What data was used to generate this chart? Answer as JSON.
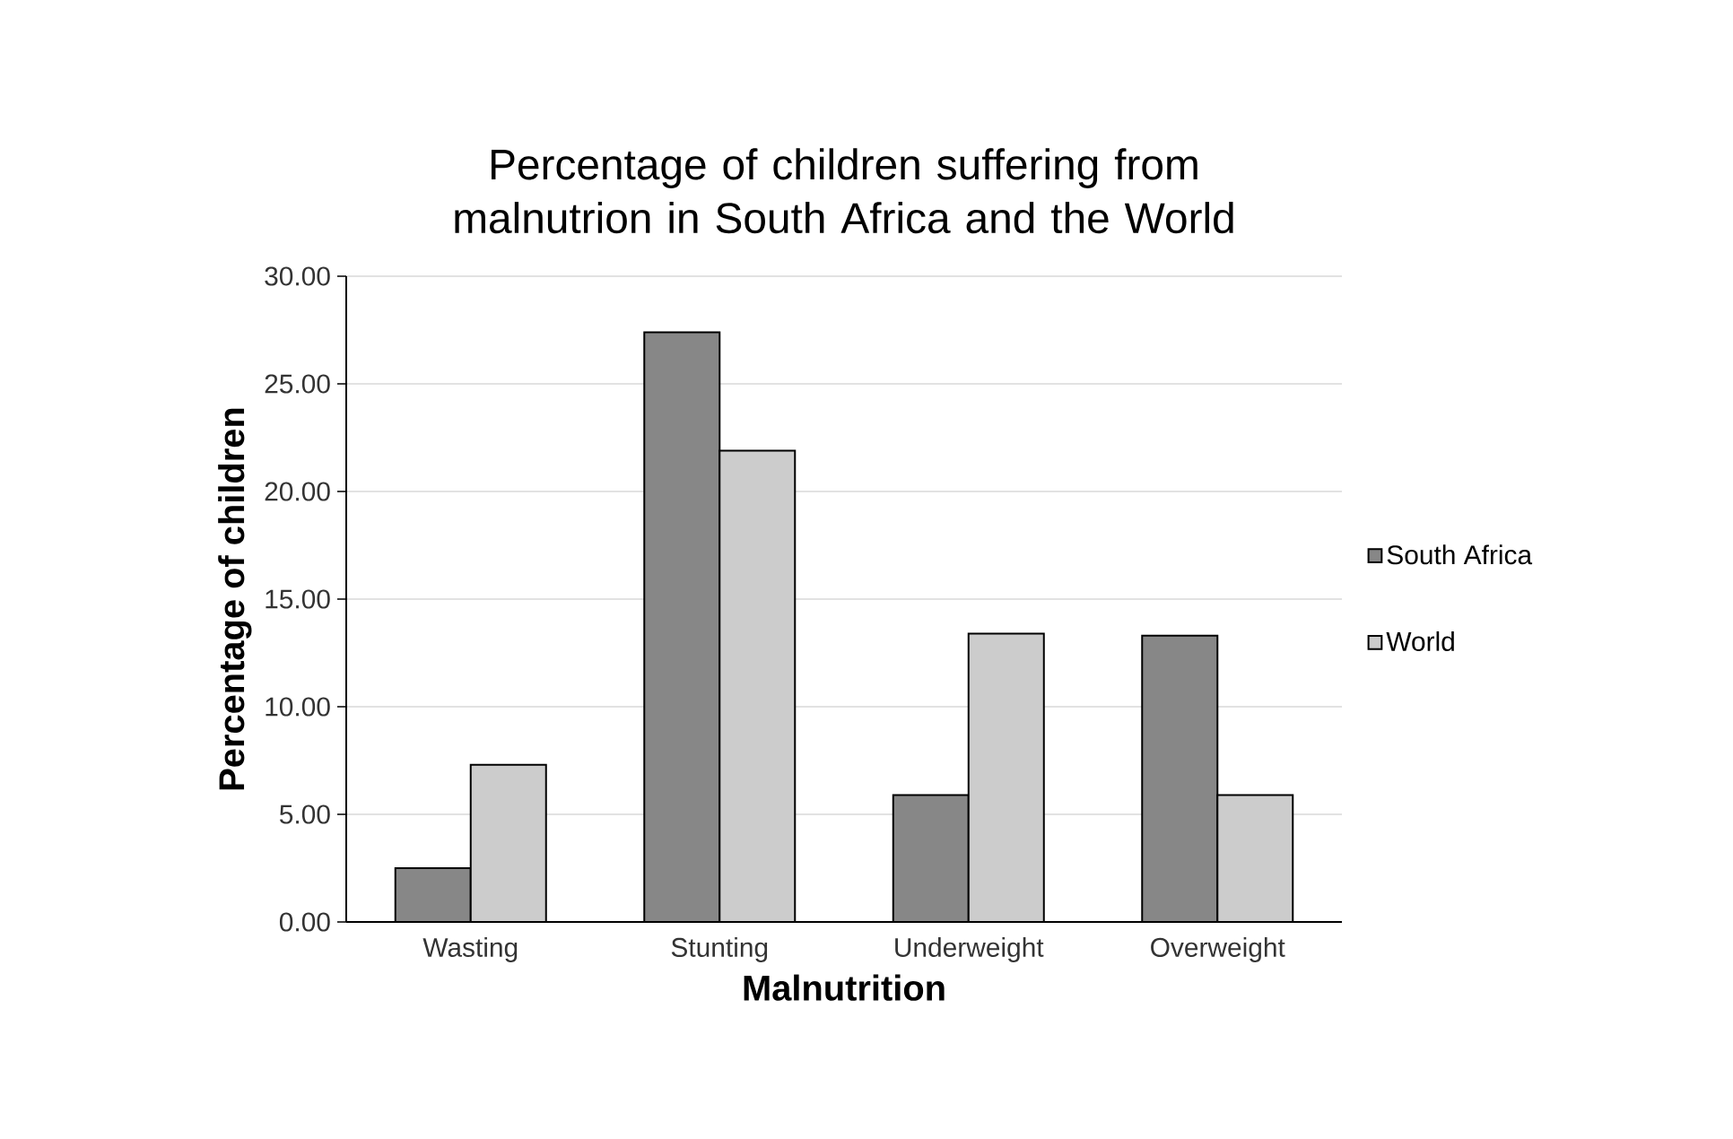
{
  "chart_data": {
    "type": "bar",
    "title": "Percentage of children suffering from malnutrion in South Africa and the World",
    "xlabel": "Malnutrition",
    "ylabel": "Percentage of children",
    "categories": [
      "Wasting",
      "Stunting",
      "Underweight",
      "Overweight"
    ],
    "series": [
      {
        "name": "South Africa",
        "color": "#878787",
        "values": [
          2.5,
          27.4,
          5.9,
          13.3
        ]
      },
      {
        "name": "World",
        "color": "#cccccc",
        "values": [
          7.3,
          21.9,
          13.4,
          5.9
        ]
      }
    ],
    "ylim": [
      0,
      30
    ],
    "yticks": [
      {
        "value": 0,
        "label": "0.00"
      },
      {
        "value": 5,
        "label": "5.00"
      },
      {
        "value": 10,
        "label": "10.00"
      },
      {
        "value": 15,
        "label": "15.00"
      },
      {
        "value": 20,
        "label": "20.00"
      },
      {
        "value": 25,
        "label": "25.00"
      },
      {
        "value": 30,
        "label": "30.00"
      }
    ],
    "grid": "y",
    "legend": "right"
  }
}
